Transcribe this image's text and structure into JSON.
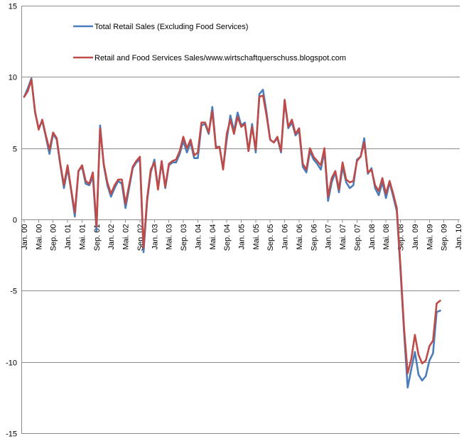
{
  "chart_data": {
    "type": "line",
    "title": "",
    "xlabel": "",
    "ylabel": "",
    "ylim": [
      -15,
      15
    ],
    "yticks": [
      -15,
      -10,
      -5,
      0,
      5,
      10,
      15
    ],
    "ytick_labels": [
      "-15",
      "-10",
      "-5",
      "0",
      "5",
      "10",
      "15"
    ],
    "xticks": [
      "Jan. 00",
      "Mai. 00",
      "Sep. 00",
      "Jan. 01",
      "Mai. 01",
      "Sep. 01",
      "Jan. 02",
      "Mai. 02",
      "Sep. 02",
      "Jan. 03",
      "Mai. 03",
      "Sep. 03",
      "Jan. 04",
      "Mai. 04",
      "Sep. 04",
      "Jan. 05",
      "Mai. 05",
      "Sep. 05",
      "Jan. 06",
      "Mai. 06",
      "Sep. 06",
      "Jan. 07",
      "Mai. 07",
      "Sep. 07",
      "Jan. 08",
      "Mai. 08",
      "Sep. 08",
      "Jan. 09",
      "Mai. 09",
      "Sep. 09",
      "Jan. 10"
    ],
    "grid": true,
    "legend_position": "top-center",
    "series": [
      {
        "name": "Total Retail Sales (Excluding Food Services)",
        "color": "#4a7ebb",
        "values": [
          8.6,
          9.2,
          9.9,
          7.5,
          6.4,
          6.9,
          5.8,
          4.6,
          6.0,
          5.6,
          3.8,
          2.2,
          3.6,
          2.0,
          0.2,
          3.4,
          3.7,
          2.5,
          2.4,
          3.0,
          -0.8,
          6.6,
          3.8,
          2.4,
          1.6,
          2.2,
          2.7,
          2.5,
          0.8,
          2.2,
          3.6,
          4.0,
          4.2,
          -2.3,
          1.3,
          3.3,
          4.2,
          2.2,
          4.0,
          2.2,
          3.8,
          4.0,
          4.0,
          4.6,
          5.5,
          4.7,
          5.4,
          4.3,
          4.3,
          6.6,
          6.7,
          6.0,
          7.9,
          5.1,
          5.1,
          3.6,
          5.6,
          7.3,
          6.2,
          7.5,
          6.6,
          6.8,
          4.8,
          6.7,
          4.7,
          8.8,
          9.1,
          7.5,
          5.6,
          5.4,
          5.7,
          4.7,
          8.3,
          6.4,
          6.8,
          5.9,
          6.2,
          3.7,
          3.3,
          4.8,
          4.2,
          3.9,
          3.5,
          4.8,
          1.3,
          2.6,
          3.3,
          1.9,
          3.7,
          2.6,
          2.2,
          2.4,
          4.2,
          4.4,
          5.7,
          3.2,
          3.6,
          2.2,
          1.7,
          2.6,
          1.5,
          2.6,
          1.6,
          0.6,
          -3.5,
          -7.9,
          -11.8,
          -10.5,
          -9.3,
          -10.9,
          -11.3,
          -11.0,
          -9.9,
          -9.4,
          -6.5,
          -6.4
        ]
      },
      {
        "name": "Retail and Food Services Sales/www.wirtschaftquerschuss.blogspot.com",
        "color": "#be4b48",
        "values": [
          8.6,
          9.0,
          9.8,
          7.6,
          6.3,
          7.0,
          5.9,
          4.9,
          6.1,
          5.7,
          3.9,
          2.4,
          3.8,
          2.1,
          0.5,
          3.4,
          3.8,
          2.7,
          2.5,
          3.3,
          -0.5,
          6.4,
          3.9,
          2.6,
          1.8,
          2.4,
          2.8,
          2.8,
          1.1,
          2.4,
          3.7,
          4.1,
          4.4,
          -2.0,
          1.5,
          3.5,
          4.0,
          2.1,
          4.1,
          2.3,
          3.9,
          4.1,
          4.2,
          4.8,
          5.8,
          5.0,
          5.6,
          4.5,
          4.7,
          6.8,
          6.8,
          6.1,
          7.6,
          5.0,
          5.1,
          3.5,
          6.0,
          7.0,
          6.0,
          7.2,
          6.5,
          6.7,
          4.8,
          6.5,
          4.9,
          8.6,
          8.7,
          7.3,
          5.6,
          5.4,
          5.8,
          4.8,
          8.4,
          6.5,
          7.0,
          6.0,
          6.4,
          3.9,
          3.5,
          5.0,
          4.4,
          4.1,
          3.8,
          5.0,
          1.6,
          2.9,
          3.4,
          2.1,
          4.0,
          2.8,
          2.6,
          2.7,
          4.1,
          4.4,
          5.4,
          3.3,
          3.5,
          2.4,
          2.0,
          2.9,
          1.8,
          2.7,
          1.8,
          0.8,
          -3.2,
          -7.6,
          -10.8,
          -9.8,
          -8.1,
          -9.5,
          -10.1,
          -9.9,
          -8.9,
          -8.5,
          -5.9,
          -5.7
        ]
      }
    ]
  }
}
